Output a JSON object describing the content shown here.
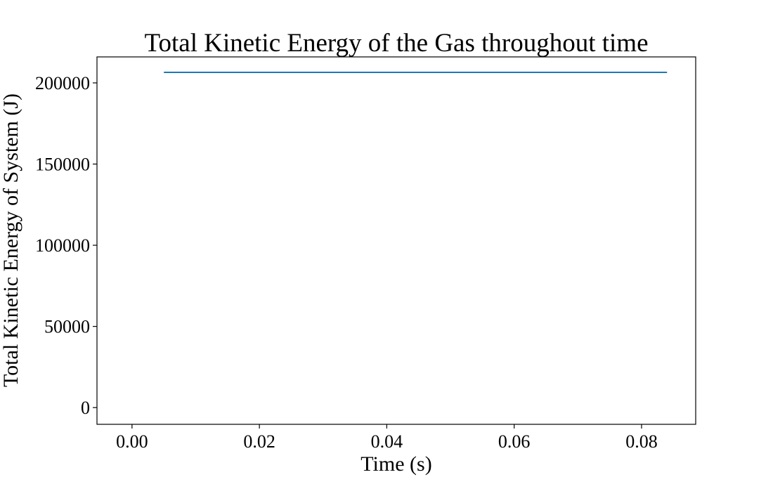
{
  "chart_data": {
    "type": "line",
    "title": "Total Kinetic Energy of the Gas throughout time",
    "xlabel": "Time (s)",
    "ylabel": "Total Kinetic Energy of System (J)",
    "xlim": [
      -0.0055,
      0.0885
    ],
    "ylim": [
      -10300,
      216000
    ],
    "x_ticks": [
      0.0,
      0.02,
      0.04,
      0.06,
      0.08
    ],
    "x_tick_labels": [
      "0.00",
      "0.02",
      "0.04",
      "0.06",
      "0.08"
    ],
    "y_ticks": [
      0,
      50000,
      100000,
      150000,
      200000
    ],
    "y_tick_labels": [
      "0",
      "50000",
      "100000",
      "150000",
      "200000"
    ],
    "grid": false,
    "series": [
      {
        "color": "#1f77b4",
        "x": [
          0.005,
          0.084
        ],
        "y": [
          206500,
          206500
        ]
      }
    ]
  }
}
